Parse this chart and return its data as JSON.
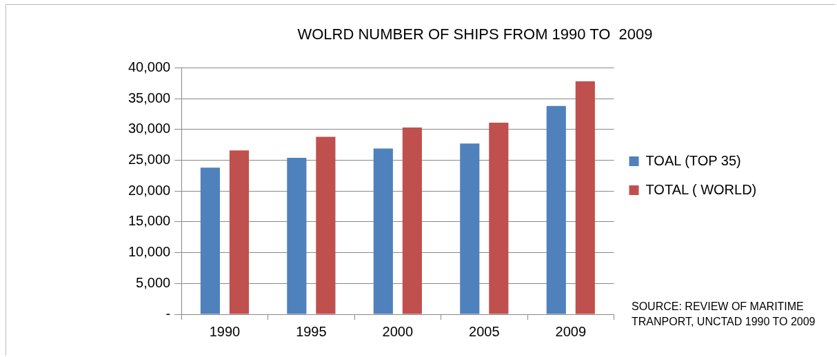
{
  "chart_data": {
    "type": "bar",
    "title": "WOLRD NUMBER OF SHIPS FROM 1990 TO  2009",
    "categories": [
      "1990",
      "1995",
      "2000",
      "2005",
      "2009"
    ],
    "series": [
      {
        "name": "TOAL (TOP 35)",
        "color": "#4f81bd",
        "values": [
          23800,
          25400,
          26900,
          27700,
          33800
        ]
      },
      {
        "name": "TOTAL ( WORLD)",
        "color": "#c0504d",
        "values": [
          26600,
          28800,
          30300,
          31100,
          37800
        ]
      }
    ],
    "ylim": [
      0,
      40000
    ],
    "yticks": [
      {
        "value": 0,
        "label": "-"
      },
      {
        "value": 5000,
        "label": "5,000"
      },
      {
        "value": 10000,
        "label": "10,000"
      },
      {
        "value": 15000,
        "label": "15,000"
      },
      {
        "value": 20000,
        "label": "20,000"
      },
      {
        "value": 25000,
        "label": "25,000"
      },
      {
        "value": 30000,
        "label": "30,000"
      },
      {
        "value": 35000,
        "label": "35,000"
      },
      {
        "value": 40000,
        "label": "40,000"
      }
    ],
    "grid": "y",
    "legend": "right",
    "annotations": [
      "SOURCE:  REVIEW OF MARITIME TRANPORT, UNCTAD 1990 TO 2009"
    ]
  }
}
